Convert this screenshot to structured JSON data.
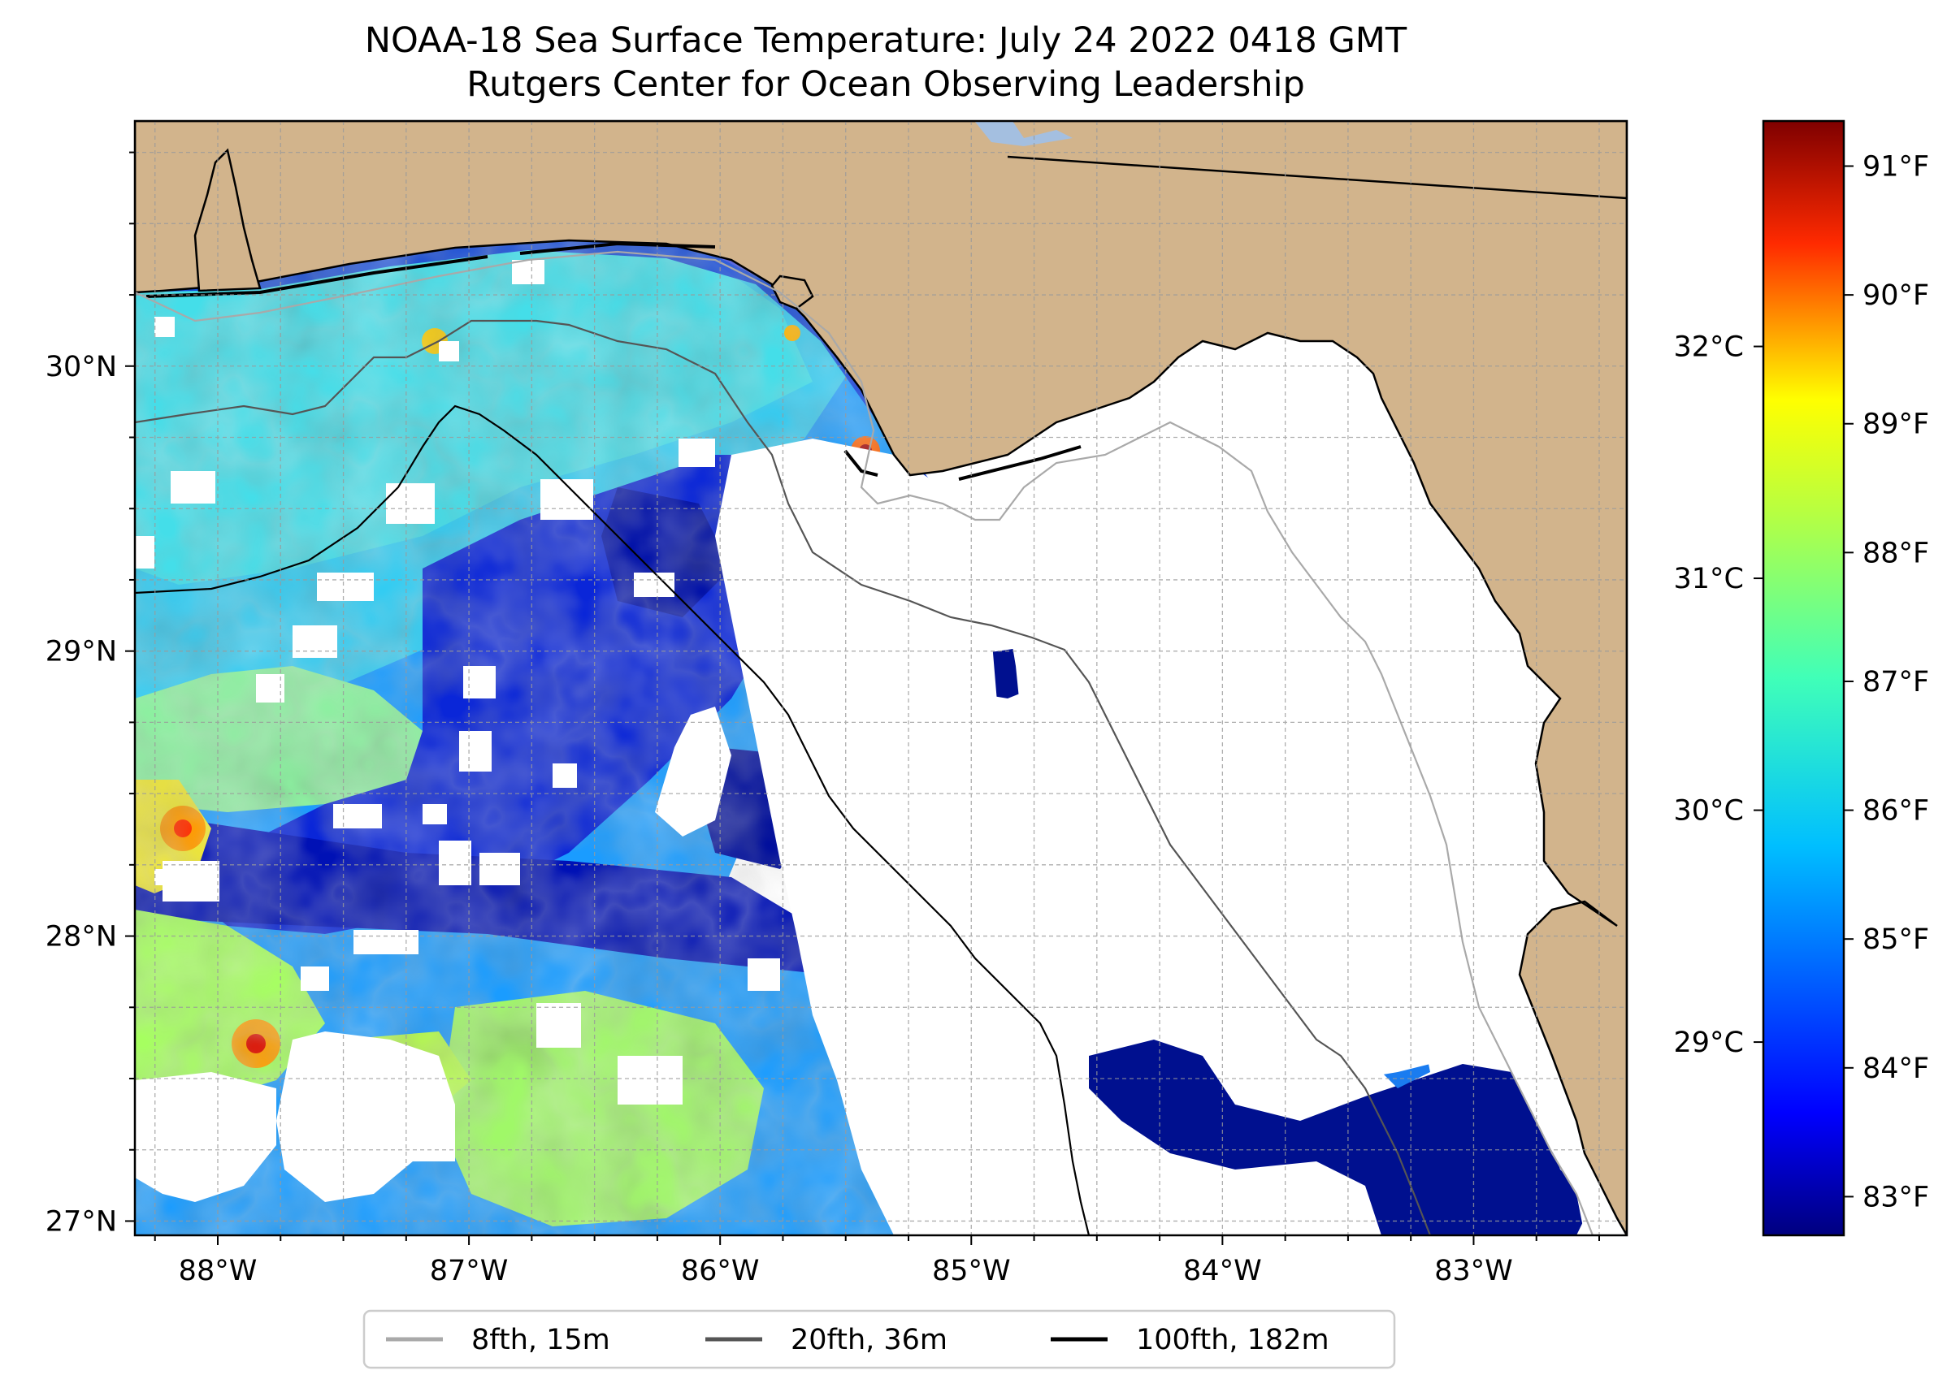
{
  "title": "NOAA-18 Sea Surface Temperature: July 24 2022 0418 GMT",
  "subtitle": "Rutgers Center for Ocean Observing Leadership",
  "map": {
    "lon_range": [
      -88.33,
      -82.39
    ],
    "lat_range": [
      26.95,
      30.86
    ],
    "land_color": "#d2b48c",
    "nodata_color": "#ffffff",
    "gridlines": true,
    "lon_ticks": [
      {
        "value": -88,
        "label": "88°W"
      },
      {
        "value": -87,
        "label": "87°W"
      },
      {
        "value": -86,
        "label": "86°W"
      },
      {
        "value": -85,
        "label": "85°W"
      },
      {
        "value": -84,
        "label": "84°W"
      },
      {
        "value": -83,
        "label": "83°W"
      }
    ],
    "lat_ticks": [
      {
        "value": 27,
        "label": "27°N"
      },
      {
        "value": 28,
        "label": "28°N"
      },
      {
        "value": 29,
        "label": "29°N"
      },
      {
        "value": 30,
        "label": "30°N"
      }
    ]
  },
  "legend": {
    "position": "bottom-center",
    "items": [
      {
        "label": "8fth, 15m",
        "color": "#a9a9a9"
      },
      {
        "label": "20fth, 36m",
        "color": "#555555"
      },
      {
        "label": "100fth, 182m",
        "color": "#000000"
      }
    ]
  },
  "colorbar": {
    "colormap": "jet",
    "range_f": [
      82.7,
      91.35
    ],
    "fahrenheit_ticks": [
      {
        "value": 83,
        "label": "83°F"
      },
      {
        "value": 84,
        "label": "84°F"
      },
      {
        "value": 85,
        "label": "85°F"
      },
      {
        "value": 86,
        "label": "86°F"
      },
      {
        "value": 87,
        "label": "87°F"
      },
      {
        "value": 88,
        "label": "88°F"
      },
      {
        "value": 89,
        "label": "89°F"
      },
      {
        "value": 90,
        "label": "90°F"
      },
      {
        "value": 91,
        "label": "91°F"
      }
    ],
    "celsius_ticks": [
      {
        "value": 29,
        "label": "29°C"
      },
      {
        "value": 30,
        "label": "30°C"
      },
      {
        "value": 31,
        "label": "31°C"
      },
      {
        "value": 32,
        "label": "32°C"
      }
    ]
  }
}
